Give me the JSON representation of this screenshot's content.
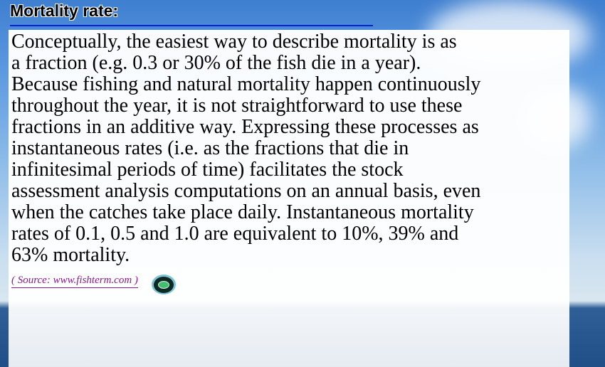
{
  "title": "Mortality rate:",
  "body_lines": [
    " Conceptually, the easiest way to describe mortality is as",
    "a fraction (e.g. 0.3 or 30% of the fish die in a year).",
    "Because fishing and natural mortality happen continuously",
    "throughout the year, it is not straightforward to use these",
    "fractions in an additive way. Expressing these processes as",
    "instantaneous rates (i.e. as the fractions that die in",
    "infinitesimal periods of time) facilitates the stock",
    "assessment analysis computations on an annual basis, even",
    "when the catches take place daily. Instantaneous mortality",
    "rates of 0.1, 0.5 and 1.0 are equivalent to 10%, 39% and",
    "63% mortality."
  ],
  "source_link": "( Source: www.fishterm.com )",
  "logo_icon": "fishterm-logo",
  "colors": {
    "title_rule": "#0a1fd6",
    "source_link": "#8b1a8b"
  }
}
